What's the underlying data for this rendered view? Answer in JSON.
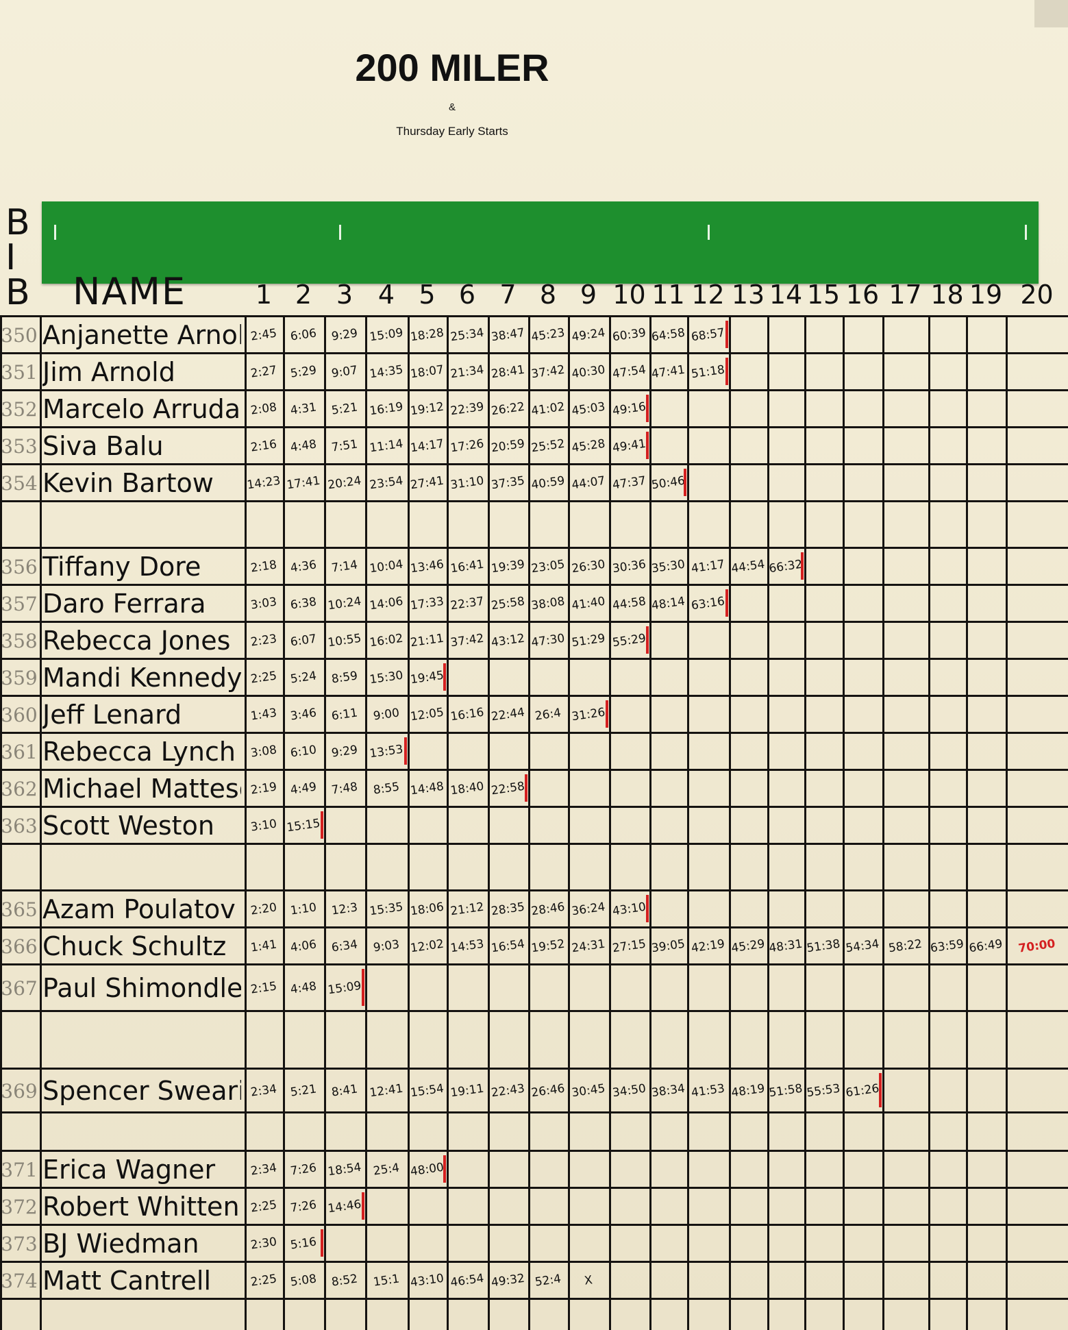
{
  "title": "200 MILER",
  "ampersand": "&",
  "subtitle": "Thursday Early Starts",
  "bib_header": [
    "B",
    "I",
    "B"
  ],
  "name_header": "NAME",
  "columns": [
    "1",
    "2",
    "3",
    "4",
    "5",
    "6",
    "7",
    "8",
    "9",
    "10",
    "11",
    "12",
    "13",
    "14",
    "15",
    "16",
    "17",
    "18",
    "19",
    "20"
  ],
  "colors": {
    "board": "#f1ead3",
    "green_bar": "#1e8f2e",
    "ink": "#151311",
    "red_marker": "#d42020"
  },
  "rows": [
    {
      "bib": "350",
      "name": "Anjanette Arnold",
      "times": [
        "2:45",
        "6:06",
        "9:29",
        "15:09",
        "18:28",
        "25:34",
        "38:47",
        "45:23",
        "49:24",
        "60:39",
        "64:58",
        "68:57"
      ]
    },
    {
      "bib": "351",
      "name": "Jim Arnold",
      "times": [
        "2:27",
        "5:29",
        "9:07",
        "14:35",
        "18:07",
        "21:34",
        "28:41",
        "37:42",
        "40:30",
        "47:54",
        "47:41",
        "51:18"
      ]
    },
    {
      "bib": "352",
      "name": "Marcelo Arruda",
      "times": [
        "2:08",
        "4:31",
        "5:21",
        "16:19",
        "19:12",
        "22:39",
        "26:22",
        "41:02",
        "45:03",
        "49:16"
      ]
    },
    {
      "bib": "353",
      "name": "Siva Balu",
      "times": [
        "2:16",
        "4:48",
        "7:51",
        "11:14",
        "14:17",
        "17:26",
        "20:59",
        "25:52",
        "45:28",
        "49:41"
      ]
    },
    {
      "bib": "354",
      "name": "Kevin Bartow",
      "times": [
        "14:23",
        "17:41",
        "20:24",
        "23:54",
        "27:41",
        "31:10",
        "37:35",
        "40:59",
        "44:07",
        "47:37",
        "50:46"
      ]
    },
    {
      "bib": "",
      "name": "",
      "times": []
    },
    {
      "bib": "356",
      "name": "Tiffany Dore",
      "times": [
        "2:18",
        "4:36",
        "7:14",
        "10:04",
        "13:46",
        "16:41",
        "19:39",
        "23:05",
        "26:30",
        "30:36",
        "35:30",
        "41:17",
        "44:54",
        "66:32"
      ]
    },
    {
      "bib": "357",
      "name": "Daro Ferrara",
      "times": [
        "3:03",
        "6:38",
        "10:24",
        "14:06",
        "17:33",
        "22:37",
        "25:58",
        "38:08",
        "41:40",
        "44:58",
        "48:14",
        "63:16"
      ]
    },
    {
      "bib": "358",
      "name": "Rebecca Jones",
      "times": [
        "2:23",
        "6:07",
        "10:55",
        "16:02",
        "21:11",
        "37:42",
        "43:12",
        "47:30",
        "51:29",
        "55:29"
      ]
    },
    {
      "bib": "359",
      "name": "Mandi Kennedy",
      "times": [
        "2:25",
        "5:24",
        "8:59",
        "15:30",
        "19:45"
      ]
    },
    {
      "bib": "360",
      "name": "Jeff Lenard",
      "times": [
        "1:43",
        "3:46",
        "6:11",
        "9:00",
        "12:05",
        "16:16",
        "22:44",
        "26:4",
        "31:26"
      ]
    },
    {
      "bib": "361",
      "name": "Rebecca Lynch",
      "times": [
        "3:08",
        "6:10",
        "9:29",
        "13:53"
      ]
    },
    {
      "bib": "362",
      "name": "Michael Matteson",
      "times": [
        "2:19",
        "4:49",
        "7:48",
        "8:55",
        "14:48",
        "18:40",
        "22:58"
      ]
    },
    {
      "bib": "363",
      "name": "Scott Weston",
      "times": [
        "3:10",
        "15:15"
      ]
    },
    {
      "bib": "",
      "name": "",
      "times": []
    },
    {
      "bib": "365",
      "name": "Azam Poulatov",
      "times": [
        "2:20",
        "1:10",
        "12:3",
        "15:35",
        "18:06",
        "21:12",
        "28:35",
        "28:46",
        "36:24",
        "43:10"
      ]
    },
    {
      "bib": "366",
      "name": "Chuck Schultz",
      "times": [
        "1:41",
        "4:06",
        "6:34",
        "9:03",
        "12:02",
        "14:53",
        "16:54",
        "19:52",
        "24:31",
        "27:15",
        "39:05",
        "42:19",
        "45:29",
        "48:31",
        "51:38",
        "54:34",
        "58:22",
        "63:59",
        "66:49",
        "70:00"
      ]
    },
    {
      "bib": "367",
      "name": "Paul Shimondle",
      "times": [
        "2:15",
        "4:48",
        "15:09"
      ]
    },
    {
      "bib": "",
      "name": "",
      "times": []
    },
    {
      "bib": "369",
      "name": "Spencer Swearingen",
      "times": [
        "2:34",
        "5:21",
        "8:41",
        "12:41",
        "15:54",
        "19:11",
        "22:43",
        "26:46",
        "30:45",
        "34:50",
        "38:34",
        "41:53",
        "48:19",
        "51:58",
        "55:53",
        "61:26"
      ]
    },
    {
      "bib": "",
      "name": "",
      "times": []
    },
    {
      "bib": "371",
      "name": "Erica Wagner",
      "times": [
        "2:34",
        "7:26",
        "18:54",
        "25:4",
        "48:00"
      ]
    },
    {
      "bib": "372",
      "name": "Robert Whitten",
      "times": [
        "2:25",
        "7:26",
        "14:46"
      ]
    },
    {
      "bib": "373",
      "name": "BJ Wiedman",
      "times": [
        "2:30",
        "5:16"
      ]
    },
    {
      "bib": "374",
      "name": "Matt Cantrell",
      "times": [
        "2:25",
        "5:08",
        "8:52",
        "15:1",
        "43:10",
        "46:54",
        "49:32",
        "52:4",
        "X"
      ]
    }
  ]
}
